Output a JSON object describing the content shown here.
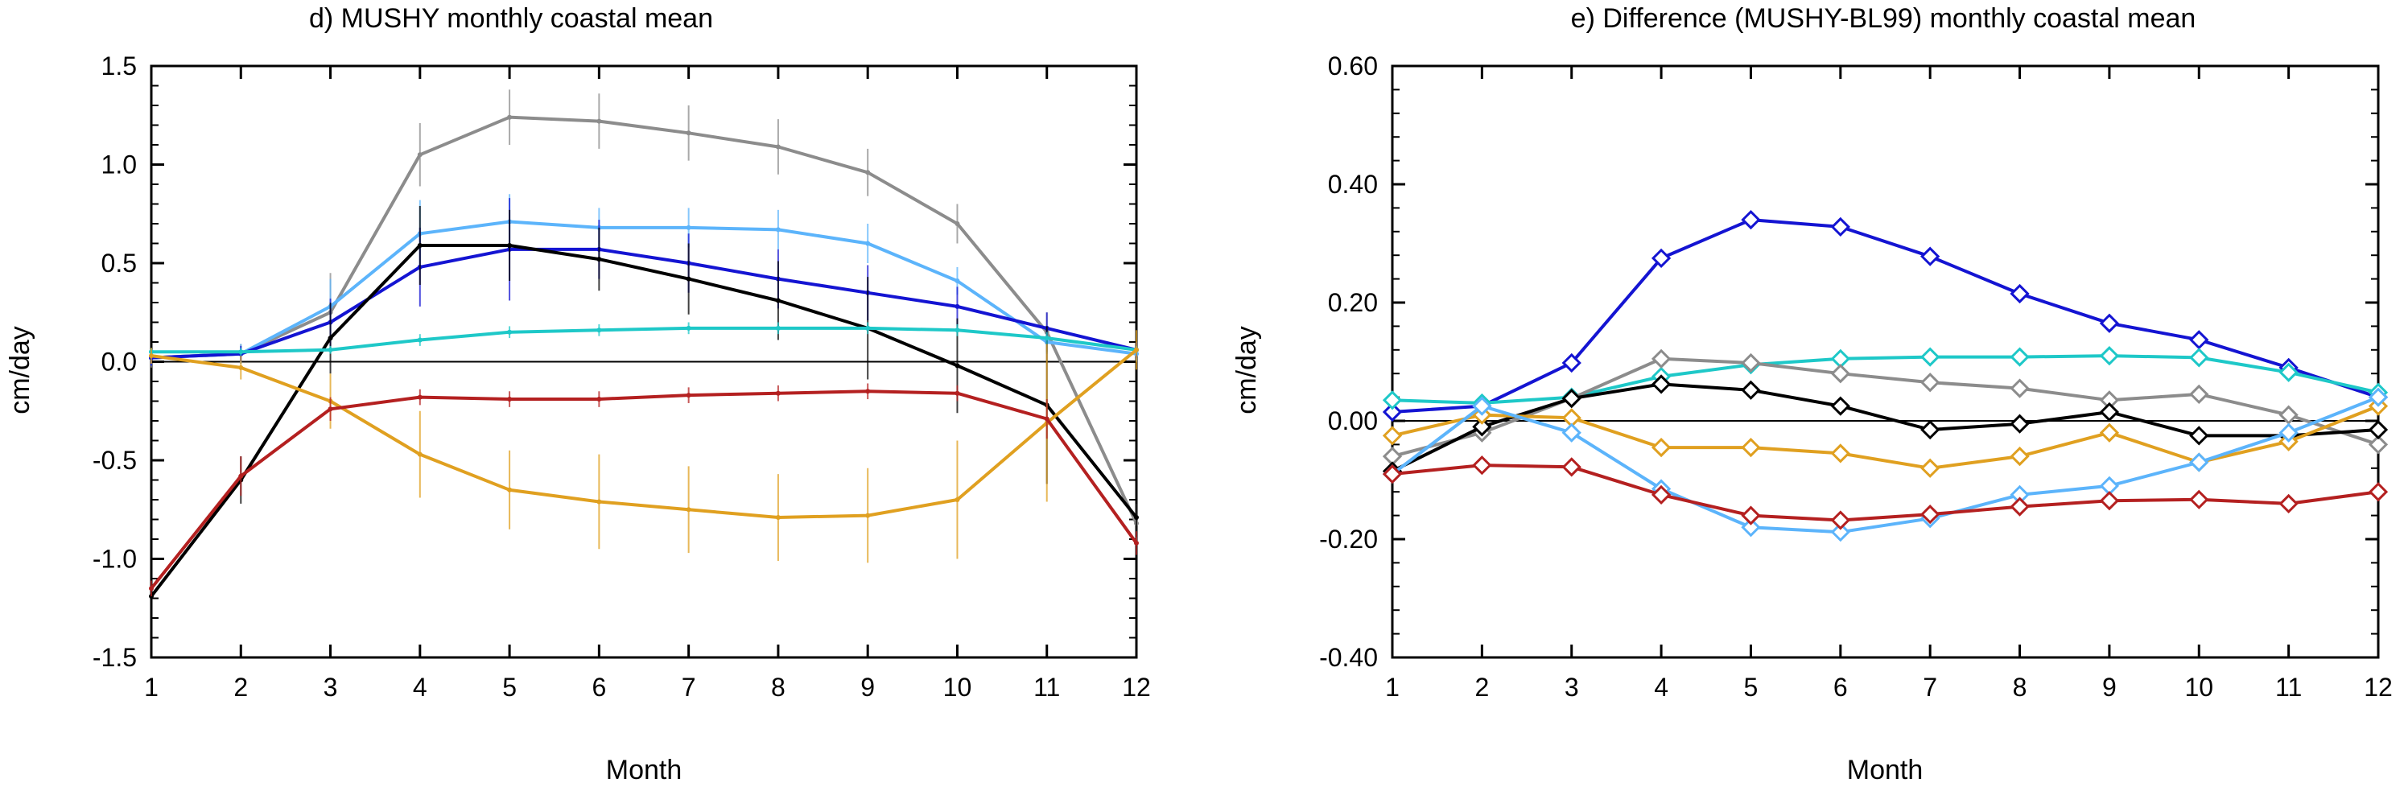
{
  "chart_data": [
    {
      "type": "line",
      "title": "d) MUSHY monthly coastal mean",
      "xlabel": "Month",
      "ylabel": "cm/day",
      "x": [
        1,
        2,
        3,
        4,
        5,
        6,
        7,
        8,
        9,
        10,
        11,
        12
      ],
      "xlim": [
        1,
        12
      ],
      "ylim": [
        -1.5,
        1.5
      ],
      "xticks": [
        "1",
        "2",
        "3",
        "4",
        "5",
        "6",
        "7",
        "8",
        "9",
        "10",
        "11",
        "12"
      ],
      "yticks": [
        -1.5,
        -1.0,
        -0.5,
        0.0,
        0.5,
        1.0,
        1.5
      ],
      "ytick_labels": [
        "-1.5",
        "-1.0",
        "-0.5",
        "0.0",
        "0.5",
        "1.0",
        "1.5"
      ],
      "zero_line": true,
      "error_bars": true,
      "series": [
        {
          "color": "#8c8c8c",
          "values": [
            0.02,
            0.04,
            0.25,
            1.05,
            1.24,
            1.22,
            1.16,
            1.09,
            0.96,
            0.7,
            0.15,
            -0.82
          ],
          "errors": [
            0.05,
            0.05,
            0.2,
            0.16,
            0.14,
            0.14,
            0.14,
            0.14,
            0.12,
            0.1,
            0.1,
            0.1
          ]
        },
        {
          "color": "#5cb4fb",
          "values": [
            0.02,
            0.04,
            0.28,
            0.65,
            0.71,
            0.68,
            0.68,
            0.67,
            0.6,
            0.41,
            0.1,
            0.04
          ],
          "errors": [
            0.04,
            0.05,
            0.14,
            0.17,
            0.14,
            0.1,
            0.1,
            0.1,
            0.1,
            0.07,
            0.06,
            0.04
          ]
        },
        {
          "color": "#1414d2",
          "values": [
            0.02,
            0.04,
            0.2,
            0.48,
            0.57,
            0.57,
            0.5,
            0.42,
            0.35,
            0.28,
            0.17,
            0.06
          ],
          "errors": [
            0.04,
            0.04,
            0.12,
            0.2,
            0.26,
            0.15,
            0.15,
            0.15,
            0.14,
            0.1,
            0.08,
            0.04
          ]
        },
        {
          "color": "#000000",
          "values": [
            -1.19,
            -0.6,
            0.12,
            0.59,
            0.59,
            0.52,
            0.42,
            0.31,
            0.17,
            -0.02,
            -0.22,
            -0.79
          ],
          "errors": [
            0.06,
            0.12,
            0.18,
            0.2,
            0.18,
            0.16,
            0.18,
            0.2,
            0.26,
            0.24,
            0.4,
            0.1
          ]
        },
        {
          "color": "#1ec8c8",
          "values": [
            0.05,
            0.05,
            0.06,
            0.11,
            0.15,
            0.16,
            0.17,
            0.17,
            0.17,
            0.16,
            0.12,
            0.06
          ],
          "errors": [
            0.02,
            0.02,
            0.02,
            0.03,
            0.03,
            0.03,
            0.03,
            0.03,
            0.03,
            0.03,
            0.03,
            0.02
          ]
        },
        {
          "color": "#e0a020",
          "values": [
            0.03,
            -0.03,
            -0.2,
            -0.47,
            -0.65,
            -0.71,
            -0.75,
            -0.79,
            -0.78,
            -0.7,
            -0.31,
            0.06
          ],
          "errors": [
            0.04,
            0.06,
            0.14,
            0.22,
            0.2,
            0.24,
            0.22,
            0.22,
            0.24,
            0.3,
            0.4,
            0.1
          ]
        },
        {
          "color": "#b42020",
          "values": [
            -1.15,
            -0.58,
            -0.24,
            -0.18,
            -0.19,
            -0.19,
            -0.17,
            -0.16,
            -0.15,
            -0.16,
            -0.29,
            -0.92
          ],
          "errors": [
            0.04,
            0.1,
            0.06,
            0.04,
            0.04,
            0.04,
            0.04,
            0.04,
            0.04,
            0.04,
            0.1,
            0.06
          ]
        }
      ]
    },
    {
      "type": "line",
      "title": "e) Difference (MUSHY-BL99) monthly coastal mean",
      "xlabel": "Month",
      "ylabel": "cm/day",
      "x": [
        1,
        2,
        3,
        4,
        5,
        6,
        7,
        8,
        9,
        10,
        11,
        12
      ],
      "xlim": [
        1,
        12
      ],
      "ylim": [
        -0.4,
        0.6
      ],
      "xticks": [
        "1",
        "2",
        "3",
        "4",
        "5",
        "6",
        "7",
        "8",
        "9",
        "10",
        "11",
        "12"
      ],
      "yticks": [
        -0.4,
        -0.2,
        0.0,
        0.2,
        0.4,
        0.6
      ],
      "ytick_labels": [
        "-0.40",
        "-0.20",
        "0.00",
        "0.20",
        "0.40",
        "0.60"
      ],
      "zero_line": true,
      "markers": true,
      "series": [
        {
          "color": "#1414d2",
          "values": [
            0.015,
            0.025,
            0.098,
            0.275,
            0.34,
            0.328,
            0.278,
            0.215,
            0.165,
            0.137,
            0.09,
            0.04
          ]
        },
        {
          "color": "#1ec8c8",
          "values": [
            0.035,
            0.03,
            0.04,
            0.075,
            0.095,
            0.105,
            0.108,
            0.108,
            0.11,
            0.107,
            0.082,
            0.048
          ]
        },
        {
          "color": "#8c8c8c",
          "values": [
            -0.06,
            -0.02,
            0.038,
            0.105,
            0.098,
            0.08,
            0.065,
            0.055,
            0.035,
            0.045,
            0.01,
            -0.04
          ]
        },
        {
          "color": "#000000",
          "values": [
            -0.085,
            -0.01,
            0.038,
            0.062,
            0.052,
            0.025,
            -0.015,
            -0.005,
            0.015,
            -0.025,
            -0.025,
            -0.015
          ]
        },
        {
          "color": "#e0a020",
          "values": [
            -0.025,
            0.01,
            0.005,
            -0.045,
            -0.045,
            -0.055,
            -0.08,
            -0.06,
            -0.02,
            -0.07,
            -0.035,
            0.025
          ]
        },
        {
          "color": "#5cb4fb",
          "values": [
            -0.09,
            0.025,
            -0.02,
            -0.115,
            -0.18,
            -0.188,
            -0.165,
            -0.125,
            -0.11,
            -0.07,
            -0.02,
            0.04
          ]
        },
        {
          "color": "#b42020",
          "values": [
            -0.09,
            -0.075,
            -0.078,
            -0.125,
            -0.16,
            -0.168,
            -0.158,
            -0.145,
            -0.135,
            -0.133,
            -0.14,
            -0.12
          ]
        }
      ]
    }
  ]
}
